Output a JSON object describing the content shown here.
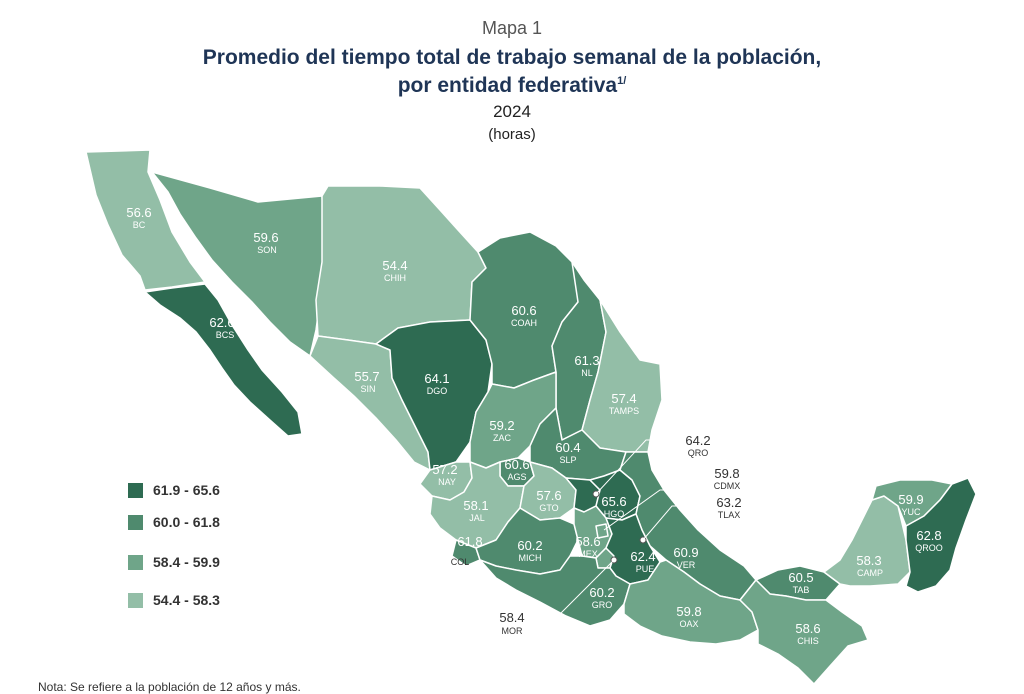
{
  "header": {
    "map_label": "Mapa 1",
    "title_line1": "Promedio del tiempo total de trabajo semanal de la población,",
    "title_line2": "por entidad federativa",
    "title_sup": "1/",
    "year": "2024",
    "unit": "(horas)"
  },
  "colors": {
    "class1": "#2e6b52",
    "class2": "#4f8a6e",
    "class3": "#6fa589",
    "class4": "#93bea7",
    "border": "#ffffff"
  },
  "legend": [
    {
      "label": "61.9 - 65.6",
      "class": "class1"
    },
    {
      "label": "60.0 - 61.8",
      "class": "class2"
    },
    {
      "label": "58.4 - 59.9",
      "class": "class3"
    },
    {
      "label": "54.4 - 58.3",
      "class": "class4"
    }
  ],
  "states": {
    "BC": {
      "value": "56.6",
      "abbr": "BC",
      "class": "class4"
    },
    "BCS": {
      "value": "62.6",
      "abbr": "BCS",
      "class": "class1"
    },
    "SON": {
      "value": "59.6",
      "abbr": "SON",
      "class": "class3"
    },
    "CHIH": {
      "value": "54.4",
      "abbr": "CHIH",
      "class": "class4"
    },
    "COAH": {
      "value": "60.6",
      "abbr": "COAH",
      "class": "class2"
    },
    "NL": {
      "value": "61.3",
      "abbr": "NL",
      "class": "class2"
    },
    "TAMPS": {
      "value": "57.4",
      "abbr": "TAMPS",
      "class": "class4"
    },
    "SIN": {
      "value": "55.7",
      "abbr": "SIN",
      "class": "class4"
    },
    "DGO": {
      "value": "64.1",
      "abbr": "DGO",
      "class": "class1"
    },
    "ZAC": {
      "value": "59.2",
      "abbr": "ZAC",
      "class": "class3"
    },
    "SLP": {
      "value": "60.4",
      "abbr": "SLP",
      "class": "class2"
    },
    "NAY": {
      "value": "57.2",
      "abbr": "NAY",
      "class": "class4"
    },
    "AGS": {
      "value": "60.6",
      "abbr": "AGS",
      "class": "class2"
    },
    "JAL": {
      "value": "58.1",
      "abbr": "JAL",
      "class": "class4"
    },
    "GTO": {
      "value": "57.6",
      "abbr": "GTO",
      "class": "class4"
    },
    "HGO": {
      "value": "65.6",
      "abbr": "HGO",
      "class": "class1"
    },
    "QRO": {
      "value": "64.2",
      "abbr": "QRO",
      "class": "class1"
    },
    "CDMX": {
      "value": "59.8",
      "abbr": "CDMX",
      "class": "class3"
    },
    "TLAX": {
      "value": "63.2",
      "abbr": "TLAX",
      "class": "class1"
    },
    "COL": {
      "value": "61.8",
      "abbr": "COL",
      "class": "class2"
    },
    "MICH": {
      "value": "60.2",
      "abbr": "MICH",
      "class": "class2"
    },
    "MEX": {
      "value": "58.6",
      "abbr": "MEX",
      "class": "class3"
    },
    "PUE": {
      "value": "62.4",
      "abbr": "PUE",
      "class": "class1"
    },
    "VER": {
      "value": "60.9",
      "abbr": "VER",
      "class": "class2"
    },
    "MOR": {
      "value": "58.4",
      "abbr": "MOR",
      "class": "class3"
    },
    "GRO": {
      "value": "60.2",
      "abbr": "GRO",
      "class": "class2"
    },
    "OAX": {
      "value": "59.8",
      "abbr": "OAX",
      "class": "class3"
    },
    "TAB": {
      "value": "60.5",
      "abbr": "TAB",
      "class": "class2"
    },
    "CHIS": {
      "value": "58.6",
      "abbr": "CHIS",
      "class": "class3"
    },
    "CAMP": {
      "value": "58.3",
      "abbr": "CAMP",
      "class": "class4"
    },
    "YUC": {
      "value": "59.9",
      "abbr": "YUC",
      "class": "class3"
    },
    "QROO": {
      "value": "62.8",
      "abbr": "QROO",
      "class": "class1"
    }
  },
  "note": "Nota: Se refiere a la población de 12 años y más."
}
